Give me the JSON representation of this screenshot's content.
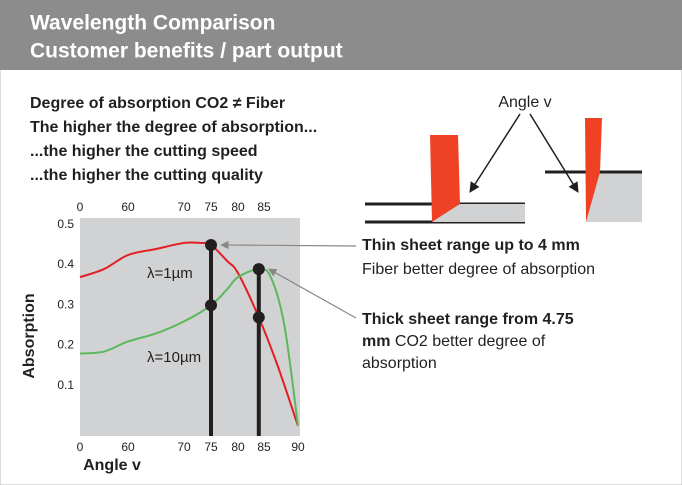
{
  "header": {
    "title": [
      "Wavelength Comparison",
      "Customer benefits / part output"
    ]
  },
  "points": [
    "Degree of absorption CO2 ≠ Fiber",
    "The higher the degree of absorption...",
    "...the higher the cutting speed",
    "...the higher the cutting quality"
  ],
  "diagram": {
    "label": "Angle v"
  },
  "callouts": [
    {
      "bold": "Thin sheet range up to 4 mm",
      "text": [
        "Fiber better degree of absorption"
      ]
    },
    {
      "bold": [
        "Thick sheet range from 4.75",
        "mm"
      ],
      "text": [
        " CO2 better degree of",
        "absorption"
      ]
    }
  ],
  "chart_data": {
    "type": "line",
    "xlabel": "Angle v",
    "ylabel": "Absorption",
    "xticks": [
      0,
      60,
      70,
      75,
      80,
      85,
      90
    ],
    "x2ticks": [
      0,
      60,
      70,
      75,
      80,
      85
    ],
    "ylim": [
      -0.025,
      0.517
    ],
    "yticks": [
      0.1,
      0.2,
      0.3,
      0.4,
      0.5
    ],
    "highlight_x": [
      75,
      84
    ],
    "series": [
      {
        "name": "λ=1µm",
        "color": "#e31e24",
        "x": [
          0,
          30,
          60,
          65,
          70,
          73,
          75,
          78,
          80,
          84,
          87,
          90
        ],
        "values": [
          0.37,
          0.39,
          0.425,
          0.44,
          0.455,
          0.455,
          0.45,
          0.41,
          0.38,
          0.27,
          0.15,
          0
        ]
      },
      {
        "name": "λ=10µm",
        "color": "#5cb85c",
        "x": [
          0,
          30,
          60,
          65,
          70,
          75,
          78,
          80,
          84,
          86,
          88,
          90
        ],
        "values": [
          0.18,
          0.185,
          0.21,
          0.23,
          0.26,
          0.3,
          0.34,
          0.37,
          0.39,
          0.37,
          0.25,
          0
        ]
      }
    ]
  }
}
